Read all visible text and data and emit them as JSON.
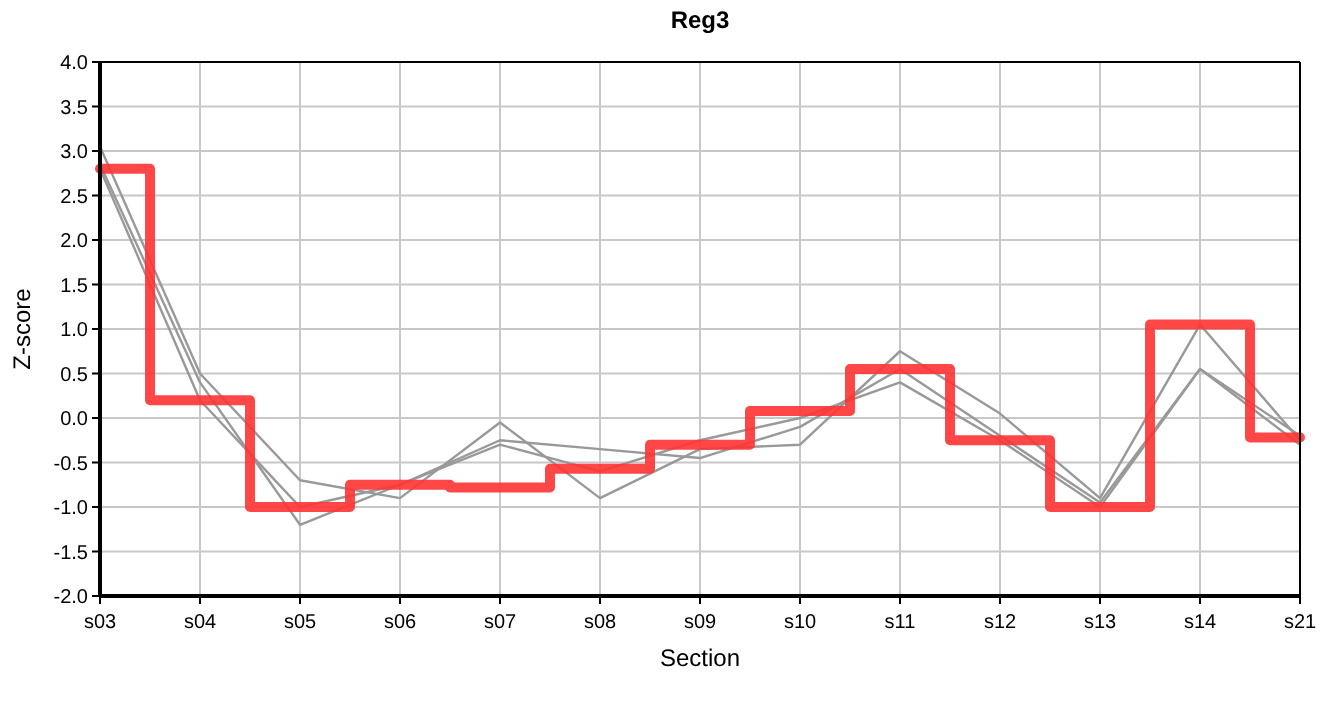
{
  "chart_data": {
    "type": "line",
    "title": "Reg3",
    "xlabel": "Section",
    "ylabel": "Z-score",
    "categories": [
      "s03",
      "s04",
      "s05",
      "s06",
      "s07",
      "s08",
      "s09",
      "s10",
      "s11",
      "s12",
      "s13",
      "s14",
      "s21"
    ],
    "series": [
      {
        "color": "#999999",
        "values": [
          3.05,
          0.5,
          -0.7,
          -0.9,
          -0.05,
          -0.9,
          -0.35,
          -0.3,
          0.75,
          0.05,
          -0.9,
          1.05,
          -0.25
        ]
      },
      {
        "color": "#999999",
        "values": [
          2.85,
          0.4,
          -1.2,
          -0.75,
          -0.25,
          -0.35,
          -0.45,
          -0.1,
          0.55,
          -0.2,
          -0.95,
          0.55,
          -0.2
        ]
      },
      {
        "color": "#999999",
        "values": [
          2.8,
          0.2,
          -1.0,
          -0.75,
          -0.3,
          -0.6,
          -0.25,
          0.0,
          0.4,
          -0.25,
          -1.0,
          0.55,
          -0.3
        ]
      },
      {
        "type": "step",
        "color": "#ff3333",
        "values": [
          2.8,
          0.2,
          -1.0,
          -0.75,
          -0.78,
          -0.57,
          -0.3,
          0.08,
          0.55,
          -0.25,
          -1.0,
          1.05,
          -0.22
        ]
      }
    ],
    "ylim": [
      -2,
      4
    ],
    "yticks": [
      {
        "value": -2,
        "label": "-2.0"
      },
      {
        "value": -1.5,
        "label": "-1.5"
      },
      {
        "value": -1,
        "label": "-1.0"
      },
      {
        "value": -0.5,
        "label": "-0.5"
      },
      {
        "value": 0,
        "label": "0.0"
      },
      {
        "value": 0.5,
        "label": "0.5"
      },
      {
        "value": 1,
        "label": "1.0"
      },
      {
        "value": 1.5,
        "label": "1.5"
      },
      {
        "value": 2,
        "label": "2.0"
      },
      {
        "value": 2.5,
        "label": "2.5"
      },
      {
        "value": 3,
        "label": "3.0"
      },
      {
        "value": 3.5,
        "label": "3.5"
      },
      {
        "value": 4,
        "label": "4.0"
      }
    ],
    "grid": true,
    "marker": "none",
    "line_style": "solid"
  }
}
